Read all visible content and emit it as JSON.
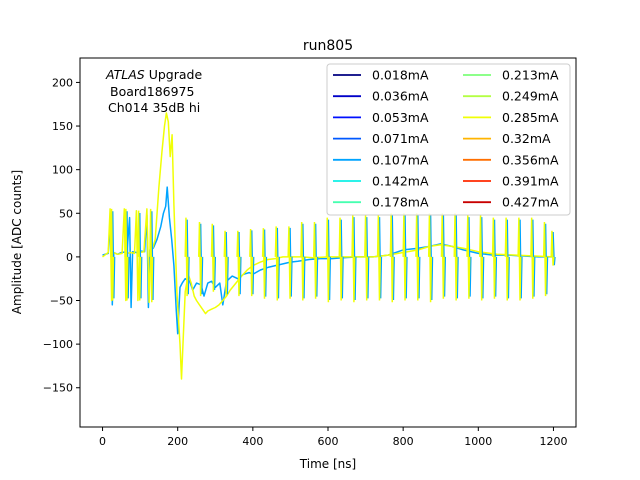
{
  "chart_data": {
    "type": "line",
    "title": "run805",
    "xlabel": "Time [ns]",
    "ylabel": "Amplitude [ADC counts]",
    "xlim": [
      -60,
      1260
    ],
    "ylim": [
      -195,
      228
    ],
    "xticks": [
      0,
      200,
      400,
      600,
      800,
      1000,
      1200
    ],
    "yticks": [
      -150,
      -100,
      -50,
      0,
      50,
      100,
      150,
      200
    ],
    "annotation": {
      "atlas": "ATLAS",
      "line1_rest": " Upgrade",
      "line2": "Board186975",
      "line3": "Ch014 35dB hi"
    },
    "legend": {
      "placement": "top-right",
      "columns": 2
    },
    "series": [
      {
        "name": "0.018mA",
        "color": "#000080"
      },
      {
        "name": "0.036mA",
        "color": "#0000c8"
      },
      {
        "name": "0.053mA",
        "color": "#0010ff"
      },
      {
        "name": "0.071mA",
        "color": "#0058ff"
      },
      {
        "name": "0.107mA",
        "color": "#00a4ff"
      },
      {
        "name": "0.142mA",
        "color": "#0ff0e6"
      },
      {
        "name": "0.178mA",
        "color": "#46ffb0"
      },
      {
        "name": "0.213mA",
        "color": "#7dff7a"
      },
      {
        "name": "0.249mA",
        "color": "#b4ff43"
      },
      {
        "name": "0.285mA",
        "color": "#f0ff06"
      },
      {
        "name": "0.32mA",
        "color": "#ffb400"
      },
      {
        "name": "0.356mA",
        "color": "#ff6f00"
      },
      {
        "name": "0.391mA",
        "color": "#ff2a00"
      },
      {
        "name": "0.427mA",
        "color": "#c80000"
      }
    ],
    "plotted": [
      {
        "name": "0.107mA",
        "color": "#00a4ff",
        "x": [
          0,
          15,
          22,
          26,
          30,
          40,
          50,
          65,
          72,
          76,
          80,
          90,
          100,
          112,
          118,
          122,
          126,
          135,
          145,
          155,
          162,
          168,
          172,
          178,
          184,
          190,
          196,
          200,
          206,
          212,
          220,
          232,
          240,
          250,
          262,
          270,
          280,
          290,
          300,
          312,
          320,
          330,
          345,
          360,
          375,
          390,
          400,
          420,
          440,
          460,
          480,
          500,
          520,
          550,
          580,
          610,
          640,
          680,
          720,
          760,
          800,
          840,
          870,
          900,
          930,
          960,
          1000,
          1040,
          1080,
          1120,
          1160,
          1200
        ],
        "y": [
          2,
          4,
          40,
          -55,
          5,
          3,
          5,
          6,
          45,
          -58,
          6,
          5,
          7,
          6,
          48,
          -58,
          8,
          10,
          20,
          35,
          50,
          58,
          80,
          45,
          20,
          -10,
          -60,
          -88,
          -35,
          -30,
          -25,
          -28,
          -38,
          -30,
          -32,
          -45,
          -30,
          -28,
          -35,
          -30,
          -55,
          -28,
          -22,
          -25,
          -20,
          -18,
          -20,
          -15,
          -12,
          -10,
          -8,
          -6,
          -5,
          -3,
          -2,
          -2,
          -1,
          0,
          0,
          2,
          8,
          10,
          12,
          15,
          12,
          8,
          4,
          2,
          2,
          1,
          0,
          0
        ]
      },
      {
        "name": "0.285mA",
        "color": "#f0ff06",
        "x": [
          0,
          15,
          20,
          24,
          28,
          40,
          52,
          58,
          62,
          66,
          75,
          85,
          90,
          94,
          98,
          110,
          118,
          124,
          128,
          132,
          140,
          150,
          158,
          165,
          170,
          175,
          180,
          185,
          190,
          194,
          198,
          202,
          206,
          210,
          220,
          228,
          236,
          244,
          250,
          258,
          266,
          274,
          280,
          290,
          300,
          310,
          320,
          330,
          340,
          355,
          370,
          385,
          400,
          420,
          440,
          460,
          480,
          500,
          530,
          560,
          600,
          640,
          680,
          720,
          760,
          800,
          840,
          870,
          900,
          930,
          960,
          1000,
          1050,
          1100,
          1150,
          1200
        ],
        "y": [
          0,
          5,
          55,
          -50,
          5,
          3,
          4,
          55,
          -50,
          4,
          5,
          4,
          53,
          -50,
          5,
          6,
          55,
          -52,
          6,
          8,
          20,
          80,
          120,
          150,
          165,
          155,
          115,
          140,
          60,
          10,
          -40,
          -70,
          -100,
          -140,
          -40,
          -20,
          -30,
          -45,
          -50,
          -55,
          -60,
          -65,
          -62,
          -60,
          -58,
          -55,
          -50,
          -45,
          -38,
          -30,
          -22,
          -15,
          -10,
          -6,
          -3,
          -2,
          0,
          0,
          0,
          -1,
          0,
          0,
          0,
          0,
          2,
          5,
          8,
          12,
          14,
          12,
          10,
          6,
          3,
          2,
          1,
          0
        ]
      }
    ],
    "spikes": {
      "x": [
        24,
        62,
        96,
        128,
        222,
        258,
        292,
        326,
        360,
        394,
        428,
        462,
        496,
        530,
        564,
        598,
        632,
        666,
        700,
        734,
        768,
        802,
        836,
        870,
        904,
        938,
        972,
        1006,
        1040,
        1074,
        1108,
        1142,
        1176,
        1196
      ],
      "up": [
        55,
        55,
        53,
        55,
        45,
        40,
        38,
        30,
        30,
        32,
        33,
        35,
        35,
        40,
        40,
        45,
        45,
        48,
        48,
        48,
        50,
        50,
        50,
        50,
        50,
        50,
        48,
        48,
        45,
        45,
        45,
        45,
        40,
        30
      ],
      "down": [
        -50,
        -50,
        -50,
        -52,
        -45,
        -45,
        -40,
        -45,
        -45,
        -45,
        -48,
        -50,
        -48,
        -50,
        -48,
        -52,
        -50,
        -52,
        -50,
        -50,
        -52,
        -50,
        -50,
        -52,
        -48,
        -50,
        -48,
        -50,
        -48,
        -50,
        -50,
        -48,
        -45,
        -10
      ]
    }
  }
}
